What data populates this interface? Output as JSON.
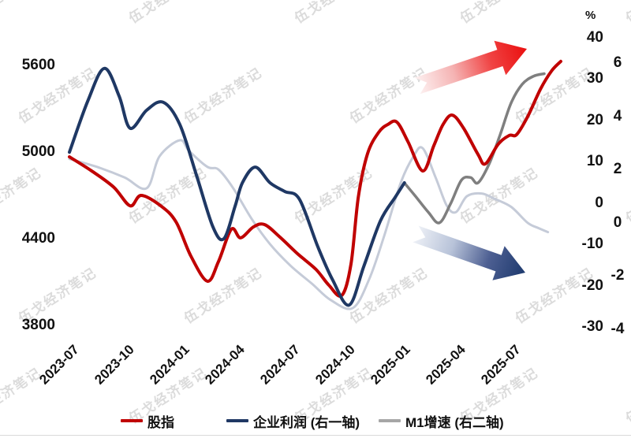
{
  "watermark": {
    "text": "伍戈经济笔记"
  },
  "chart_data": {
    "type": "line",
    "title": "",
    "x_axis": {
      "tick_labels": [
        "2023-07",
        "2023-10",
        "2024-01",
        "2024-04",
        "2024-07",
        "2024-10",
        "2025-01",
        "2025-04",
        "2025-07"
      ],
      "tick_month_positions": [
        0,
        3,
        6,
        9,
        12,
        15,
        18,
        21,
        24
      ],
      "note": "x unit = months since 2023-07"
    },
    "axes": {
      "left": {
        "ticks": [
          5600,
          5000,
          4400,
          3800
        ]
      },
      "right1": {
        "unit": "%",
        "ticks": [
          40,
          30,
          20,
          10,
          0,
          -10,
          -20,
          -30
        ]
      },
      "right2": {
        "ticks": [
          6,
          4,
          2,
          0,
          -2,
          -4
        ]
      }
    },
    "grid": false,
    "legend_position": "bottom",
    "legend": [
      {
        "key": "stock-index",
        "label": "股指",
        "color": "#c00000"
      },
      {
        "key": "profit",
        "label": "企业利润 (右一轴)",
        "color": "#1f3864"
      },
      {
        "key": "m1-growth",
        "label": "M1增速 (右二轴)",
        "color": "#a6a6a6"
      }
    ],
    "series": [
      {
        "key": "m1-old-faded",
        "axis": "right2",
        "color": "#c5cbd8",
        "width": 3,
        "points": [
          [
            0,
            2.4
          ],
          [
            1.5,
            2.1
          ],
          [
            3.0,
            1.7
          ],
          [
            4.2,
            1.3
          ],
          [
            4.9,
            2.5
          ],
          [
            6.0,
            3.1
          ],
          [
            6.5,
            2.7
          ],
          [
            7.5,
            2.1
          ],
          [
            8.1,
            2.0
          ],
          [
            8.9,
            1.3
          ],
          [
            9.9,
            0.15
          ],
          [
            10.9,
            -0.8
          ],
          [
            12.0,
            -1.6
          ],
          [
            13.2,
            -2.3
          ],
          [
            14.2,
            -2.9
          ],
          [
            15.4,
            -3.2
          ],
          [
            16.3,
            -2.1
          ],
          [
            17.1,
            -0.5
          ],
          [
            18.0,
            1.5
          ],
          [
            18.7,
            2.5
          ],
          [
            19.2,
            2.8
          ],
          [
            19.9,
            1.7
          ],
          [
            20.5,
            0.65
          ],
          [
            21.0,
            0.4
          ],
          [
            21.6,
            1.0
          ],
          [
            22.4,
            1.1
          ],
          [
            23.1,
            0.9
          ],
          [
            24.0,
            0.6
          ],
          [
            24.9,
            0.0
          ],
          [
            25.5,
            -0.2
          ],
          [
            26.0,
            -0.35
          ]
        ]
      },
      {
        "key": "m1-growth",
        "axis": "right2",
        "color": "#7f7f7f",
        "width": 3.5,
        "points": [
          [
            18.2,
            1.5
          ],
          [
            18.8,
            1.0
          ],
          [
            19.5,
            0.4
          ],
          [
            20.1,
            0.0
          ],
          [
            20.7,
            0.7
          ],
          [
            21.3,
            1.6
          ],
          [
            21.8,
            1.7
          ],
          [
            22.2,
            1.5
          ],
          [
            22.8,
            2.2
          ],
          [
            23.4,
            3.3
          ],
          [
            24.0,
            4.5
          ],
          [
            24.6,
            5.2
          ],
          [
            25.2,
            5.5
          ],
          [
            25.8,
            5.6
          ]
        ]
      },
      {
        "key": "stock-index",
        "axis": "left",
        "color": "#c00000",
        "width": 4,
        "points": [
          [
            0,
            4967
          ],
          [
            1.2,
            4870
          ],
          [
            2.4,
            4758
          ],
          [
            3.3,
            4628
          ],
          [
            3.9,
            4700
          ],
          [
            5.0,
            4624
          ],
          [
            5.8,
            4515
          ],
          [
            6.6,
            4280
          ],
          [
            7.5,
            4106
          ],
          [
            8.1,
            4242
          ],
          [
            8.8,
            4466
          ],
          [
            9.3,
            4406
          ],
          [
            10.0,
            4482
          ],
          [
            10.6,
            4498
          ],
          [
            11.4,
            4416
          ],
          [
            12.4,
            4296
          ],
          [
            13.4,
            4187
          ],
          [
            14.1,
            4078
          ],
          [
            14.8,
            4007
          ],
          [
            15.3,
            4225
          ],
          [
            15.7,
            4689
          ],
          [
            16.2,
            4989
          ],
          [
            16.8,
            5136
          ],
          [
            17.3,
            5191
          ],
          [
            17.8,
            5207
          ],
          [
            18.4,
            5071
          ],
          [
            19.2,
            4869
          ],
          [
            19.8,
            5044
          ],
          [
            20.3,
            5191
          ],
          [
            20.8,
            5256
          ],
          [
            21.4,
            5169
          ],
          [
            22.2,
            4984
          ],
          [
            22.6,
            4918
          ],
          [
            23.3,
            5055
          ],
          [
            23.9,
            5115
          ],
          [
            24.3,
            5121
          ],
          [
            24.9,
            5246
          ],
          [
            25.6,
            5437
          ],
          [
            26.2,
            5562
          ],
          [
            26.7,
            5628
          ]
        ]
      },
      {
        "key": "profit",
        "axis": "right1",
        "color": "#1f3864",
        "width": 4,
        "points": [
          [
            0,
            12.3
          ],
          [
            1.0,
            24.7
          ],
          [
            1.9,
            32.6
          ],
          [
            2.7,
            25.9
          ],
          [
            3.3,
            18.1
          ],
          [
            4.2,
            22.5
          ],
          [
            5.1,
            24.4
          ],
          [
            6.0,
            19.0
          ],
          [
            6.9,
            6.8
          ],
          [
            7.8,
            -5.8
          ],
          [
            8.4,
            -8.6
          ],
          [
            9.0,
            -0.8
          ],
          [
            9.4,
            4.9
          ],
          [
            10.1,
            8.7
          ],
          [
            10.9,
            4.9
          ],
          [
            11.7,
            2.8
          ],
          [
            12.5,
            0.9
          ],
          [
            13.5,
            -10.6
          ],
          [
            14.3,
            -18.6
          ],
          [
            15.2,
            -24.7
          ],
          [
            16.0,
            -15.3
          ],
          [
            16.9,
            -4.3
          ],
          [
            17.7,
            1.4
          ],
          [
            18.2,
            4.9
          ]
        ]
      }
    ],
    "annotations": {
      "arrows": [
        {
          "key": "up-arrow",
          "from": [
            529,
            109
          ],
          "to": [
            668,
            62
          ],
          "stops": [
            "#fdf1f1",
            "#f5b3b3",
            "#f04444",
            "#ea0f0f"
          ]
        },
        {
          "key": "down-arrow",
          "from": [
            527,
            297
          ],
          "to": [
            666,
            346
          ],
          "stops": [
            "#edf0f6",
            "#b8c3d9",
            "#4d5f92",
            "#1e3a6e"
          ]
        }
      ]
    }
  }
}
